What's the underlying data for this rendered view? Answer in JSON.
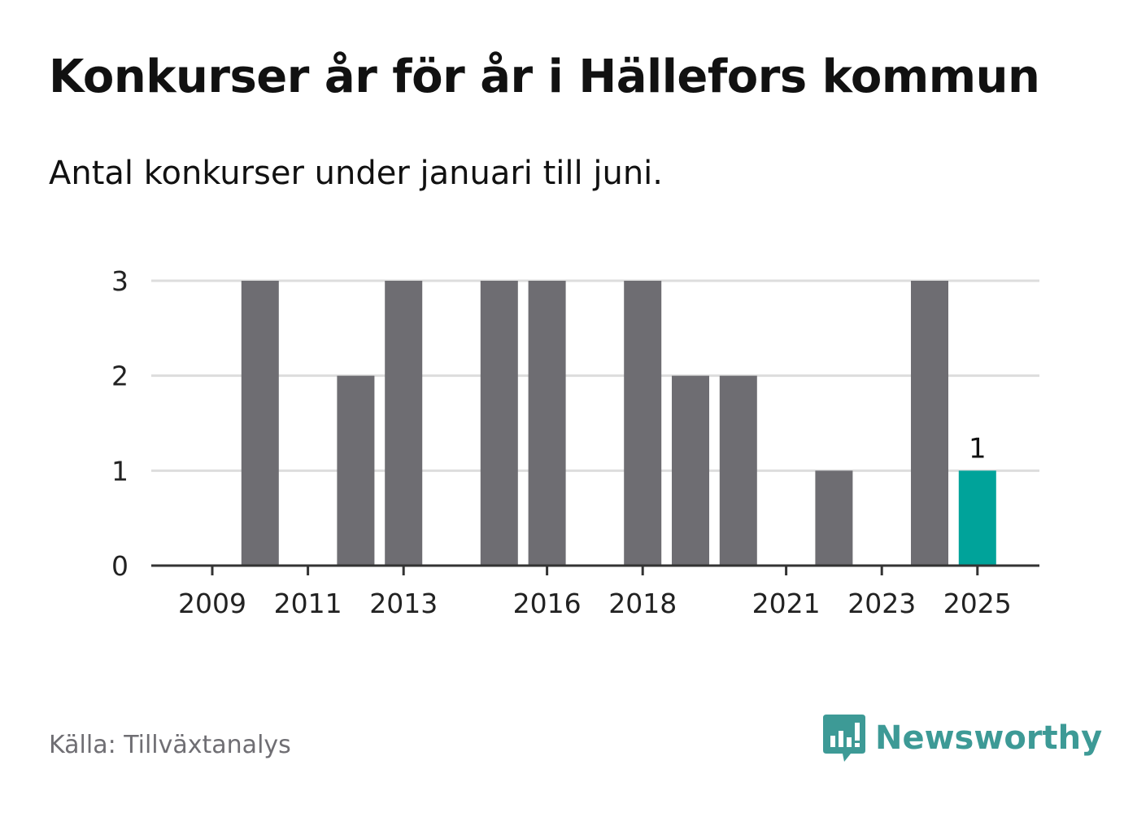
{
  "title": "Konkurser år för år i Hällefors kommun",
  "subtitle": "Antal konkurser under januari till juni.",
  "source": "Källa: Tillväxtanalys",
  "brand": {
    "name": "Newsworthy",
    "icon": "newsworthy-chart-bubble-icon",
    "color": "#3d9a96"
  },
  "colors": {
    "bar": "#6e6d72",
    "highlight": "#00a39a",
    "grid": "#dddddd",
    "axis": "#333333"
  },
  "chart_data": {
    "type": "bar",
    "title": "Konkurser år för år i Hällefors kommun",
    "subtitle": "Antal konkurser under januari till juni.",
    "categories": [
      2009,
      2010,
      2011,
      2012,
      2013,
      2014,
      2015,
      2016,
      2017,
      2018,
      2019,
      2020,
      2021,
      2022,
      2023,
      2024,
      2025
    ],
    "values": [
      0,
      3,
      0,
      2,
      3,
      0,
      3,
      3,
      0,
      3,
      2,
      2,
      0,
      1,
      0,
      3,
      1
    ],
    "x_tick_labels": [
      "2009",
      "2011",
      "2013",
      "2016",
      "2018",
      "2021",
      "2023",
      "2025"
    ],
    "y_ticks": [
      0,
      1,
      2,
      3
    ],
    "ylim": [
      0,
      3
    ],
    "grid": true,
    "highlight_category": 2025,
    "data_labels": [
      {
        "category": 2025,
        "value": "1"
      }
    ],
    "xlabel": "",
    "ylabel": ""
  }
}
